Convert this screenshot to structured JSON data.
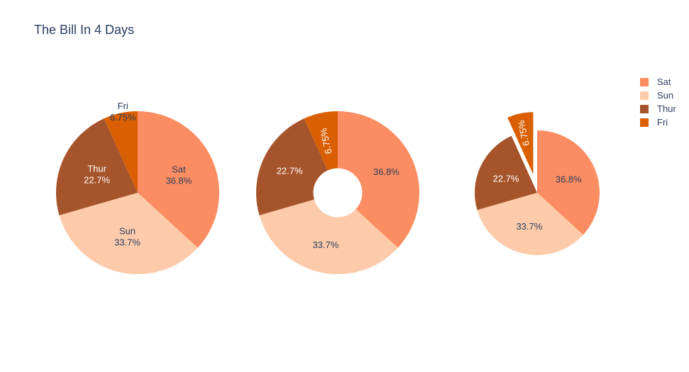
{
  "chart_data": {
    "title": "The Bill In 4 Days",
    "type": "pie",
    "legend_position": "top-right",
    "series": [
      {
        "name": "Sat",
        "value": 36.8,
        "label": "36.8%",
        "color": "#fc8d62"
      },
      {
        "name": "Sun",
        "value": 33.7,
        "label": "33.7%",
        "color": "#fdcbaa"
      },
      {
        "name": "Thur",
        "value": 22.7,
        "label": "22.7%",
        "color": "#a6542b"
      },
      {
        "name": "Fri",
        "value": 6.75,
        "label": "6.75%",
        "color": "#d95f02"
      }
    ],
    "charts": [
      {
        "variant": "pie",
        "textinfo": "label+percent",
        "hole": 0,
        "pull": [
          0,
          0,
          0,
          0
        ]
      },
      {
        "variant": "donut",
        "textinfo": "percent",
        "hole": 0.3,
        "pull": [
          0,
          0,
          0,
          0
        ]
      },
      {
        "variant": "pulled",
        "textinfo": "percent",
        "hole": 0,
        "pull": [
          0,
          0,
          0,
          0.3
        ]
      }
    ]
  }
}
